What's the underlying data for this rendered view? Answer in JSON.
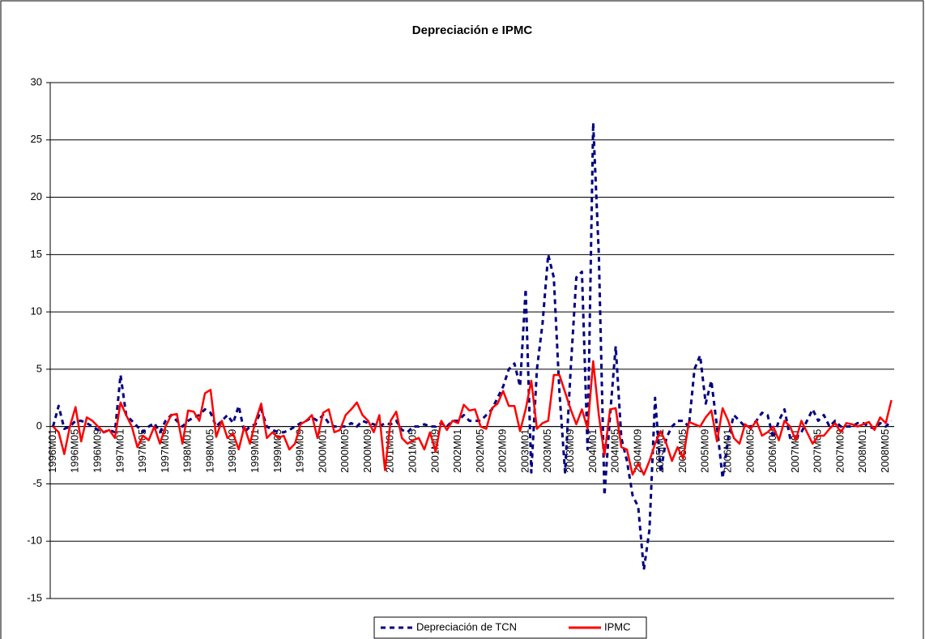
{
  "chart_data": {
    "type": "line",
    "title": "Depreciación e IPMC",
    "categories": [
      "1996M01",
      null,
      null,
      null,
      "1996M05",
      null,
      null,
      null,
      "1996M09",
      null,
      null,
      null,
      "1997M01",
      null,
      null,
      null,
      "1997M05",
      null,
      null,
      null,
      "1997M09",
      null,
      null,
      null,
      "1998M01",
      null,
      null,
      null,
      "1998M05",
      null,
      null,
      null,
      "1998M09",
      null,
      null,
      null,
      "1999M01",
      null,
      null,
      null,
      "1999M05",
      null,
      null,
      null,
      "1999M09",
      null,
      null,
      null,
      "2000M01",
      null,
      null,
      null,
      "2000M05",
      null,
      null,
      null,
      "2000M09",
      null,
      null,
      null,
      "2001M01",
      null,
      null,
      null,
      "2001M05",
      null,
      null,
      null,
      "2001M09",
      null,
      null,
      null,
      "2002M01",
      null,
      null,
      null,
      "2002M05",
      null,
      null,
      null,
      "2002M09",
      null,
      null,
      null,
      "2003M01",
      null,
      null,
      null,
      "2003M05",
      null,
      null,
      null,
      "2003M09",
      null,
      null,
      null,
      "2004M01",
      null,
      null,
      null,
      "2004M05",
      null,
      null,
      null,
      "2004M09",
      null,
      null,
      null,
      "2005M01",
      null,
      null,
      null,
      "2005M05",
      null,
      null,
      null,
      "2005M09",
      null,
      null,
      null,
      "2006M01",
      null,
      null,
      null,
      "2006M05",
      null,
      null,
      null,
      "2006M09",
      null,
      null,
      null,
      "2007M01",
      null,
      null,
      null,
      "2007M05",
      null,
      null,
      null,
      "2007M09",
      null,
      null,
      null,
      "2008M01",
      null,
      null,
      null,
      "2008M05",
      null
    ],
    "series": [
      {
        "name": "Depreciación de TCN",
        "color": "#000080",
        "dashed": true,
        "values": [
          0,
          1.8,
          -0.2,
          0,
          0.5,
          0.5,
          0.3,
          0,
          -0.3,
          -0.5,
          -0.3,
          -0.5,
          4.5,
          1,
          0.5,
          0,
          -0.5,
          0,
          0.3,
          -0.5,
          0.5,
          1,
          0.5,
          0,
          0.5,
          0.8,
          1,
          1.5,
          1.2,
          0,
          0.5,
          1,
          0.3,
          1.8,
          -0.5,
          0,
          0.2,
          1.5,
          0,
          -0.3,
          -0.5,
          -0.5,
          -0.3,
          0,
          0.3,
          0.5,
          0.8,
          0.5,
          1,
          0.3,
          0,
          0,
          0,
          0.3,
          0,
          0.5,
          0.3,
          0.2,
          0,
          0.3,
          0.2,
          0.5,
          -0.3,
          -0.5,
          0,
          0,
          0.2,
          0,
          0,
          0.3,
          0,
          0.5,
          0.5,
          1,
          0.5,
          0.5,
          0.5,
          1,
          1.5,
          2.5,
          3.5,
          5,
          5.5,
          3.5,
          12,
          -4,
          5,
          9,
          15,
          13,
          3,
          -4,
          5,
          13,
          13.5,
          -2,
          26.5,
          15,
          -6,
          1,
          7,
          -1,
          -3,
          -6,
          -7,
          -12.5,
          -9,
          2.5,
          -4,
          -1,
          0,
          0.5,
          0.5,
          0,
          5,
          6.2,
          2,
          4,
          0,
          -4.5,
          -1,
          1,
          0.5,
          0,
          0,
          0.5,
          1.2,
          1,
          -1,
          0.5,
          1.5,
          -1,
          -1,
          -0.5,
          0.5,
          1.5,
          0.5,
          1,
          0,
          0.5,
          0,
          0,
          0,
          0.3,
          0.3,
          0,
          -0.2,
          0.3,
          0,
          0.5
        ]
      },
      {
        "name": "IPMC",
        "color": "#ff0000",
        "dashed": false,
        "values": [
          0,
          -0.5,
          -2.4,
          0,
          1.7,
          -1.3,
          0.8,
          0.5,
          0,
          -0.5,
          -0.3,
          -1,
          2.1,
          1,
          0,
          -1.8,
          -0.8,
          -1.2,
          0,
          -1.5,
          0,
          1,
          1.1,
          -1.5,
          1.4,
          1.3,
          0.5,
          2.9,
          3.2,
          -0.9,
          0.5,
          -1,
          -0.6,
          -2,
          0,
          -1.5,
          0.5,
          2,
          -1,
          -0.5,
          -1,
          -0.8,
          -2,
          -1.5,
          0.2,
          0.5,
          1,
          -1,
          1.2,
          1.5,
          -0.5,
          -0.3,
          1,
          1.5,
          2.1,
          1,
          0.5,
          -0.5,
          1,
          -3.8,
          0.5,
          1.3,
          -1,
          -1.5,
          -1.2,
          -1,
          -2,
          -0.5,
          -2.2,
          0.5,
          -0.3,
          0.5,
          0.3,
          1.9,
          1.4,
          1.5,
          0,
          -0.2,
          1.6,
          2,
          3.1,
          1.8,
          1.8,
          -0.4,
          1.5,
          4,
          -0.2,
          0.3,
          0.5,
          4.5,
          4.5,
          3,
          1.5,
          0.2,
          1.5,
          -0.2,
          5.7,
          1,
          -2.5,
          1.5,
          1.6,
          -1.8,
          -2,
          -4.2,
          -3.2,
          -4.2,
          -3,
          -1.5,
          -0.4,
          -1.5,
          -3,
          -1.8,
          -2.8,
          0.4,
          0.2,
          0,
          0.8,
          1.4,
          -1.3,
          1.6,
          0.5,
          -1,
          -1.5,
          0.2,
          -0.2,
          0.5,
          -0.8,
          -0.5,
          0,
          -1.2,
          0.5,
          0,
          -1.2,
          0.5,
          -0.5,
          -1.5,
          -0.8,
          -0.8,
          -0.2,
          0.3,
          -0.5,
          0.3,
          0.2,
          0,
          0.2,
          0.4,
          -0.3,
          0.8,
          0.3,
          2.3
        ]
      }
    ],
    "ylim": [
      -15,
      30
    ],
    "yticks": [
      -15,
      -10,
      -5,
      0,
      5,
      10,
      15,
      20,
      25,
      30
    ],
    "grid": true,
    "legend": "bottom"
  }
}
